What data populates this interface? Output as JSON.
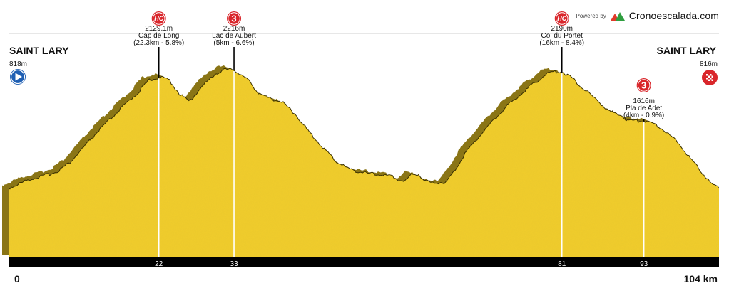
{
  "brand": {
    "powered_by": "Powered by",
    "name": "Cronoescalada.com",
    "logo_icon": "mountains-icon",
    "colors": [
      "#e03a2a",
      "#2f9e3f"
    ]
  },
  "start": {
    "name": "SAINT LARY",
    "altitude": "818m",
    "icon": "play-icon"
  },
  "finish": {
    "name": "SAINT LARY",
    "altitude": "816m",
    "icon": "checkered-flag-icon"
  },
  "colors": {
    "profile": "#f2cd2a",
    "shadow": "#8a7516",
    "baseline": "#000000",
    "badge": "#d9262b"
  },
  "chart_data": {
    "type": "area",
    "title": "",
    "xlabel": "",
    "ylabel": "",
    "xlim": [
      0,
      104
    ],
    "x_unit": "km",
    "x_ticks": [
      {
        "km": 0,
        "label": "0",
        "edge": true
      },
      {
        "km": 22,
        "label": "22"
      },
      {
        "km": 33,
        "label": "33"
      },
      {
        "km": 81,
        "label": "81"
      },
      {
        "km": 93,
        "label": "93"
      },
      {
        "km": 104,
        "label": "104 km",
        "edge": true
      }
    ],
    "profile": [
      [
        0,
        818
      ],
      [
        1,
        850
      ],
      [
        3,
        920
      ],
      [
        5,
        960
      ],
      [
        7,
        1010
      ],
      [
        9,
        1120
      ],
      [
        11,
        1300
      ],
      [
        13,
        1480
      ],
      [
        15,
        1640
      ],
      [
        17,
        1800
      ],
      [
        19,
        1950
      ],
      [
        20.5,
        2090
      ],
      [
        22,
        2129
      ],
      [
        23.5,
        2100
      ],
      [
        25,
        1930
      ],
      [
        26.5,
        1840
      ],
      [
        28,
        1990
      ],
      [
        30,
        2150
      ],
      [
        31.5,
        2216
      ],
      [
        33,
        2216
      ],
      [
        35,
        2100
      ],
      [
        36.5,
        1950
      ],
      [
        38,
        1880
      ],
      [
        40,
        1840
      ],
      [
        42,
        1690
      ],
      [
        44,
        1480
      ],
      [
        46,
        1300
      ],
      [
        48,
        1130
      ],
      [
        50,
        1040
      ],
      [
        52,
        1000
      ],
      [
        54,
        980
      ],
      [
        56,
        960
      ],
      [
        57,
        920
      ],
      [
        58,
        900
      ],
      [
        59,
        980
      ],
      [
        60,
        980
      ],
      [
        61,
        905
      ],
      [
        62,
        880
      ],
      [
        64,
        890
      ],
      [
        65,
        990
      ],
      [
        67,
        1250
      ],
      [
        69,
        1440
      ],
      [
        71,
        1620
      ],
      [
        73,
        1790
      ],
      [
        75,
        1930
      ],
      [
        77,
        2060
      ],
      [
        78.5,
        2150
      ],
      [
        79.5,
        2190
      ],
      [
        81,
        2190
      ],
      [
        82.5,
        2120
      ],
      [
        84,
        2000
      ],
      [
        86,
        1870
      ],
      [
        87,
        1790
      ],
      [
        88,
        1720
      ],
      [
        89.5,
        1690
      ],
      [
        90.5,
        1620
      ],
      [
        91.5,
        1610
      ],
      [
        93,
        1616
      ],
      [
        94.5,
        1580
      ],
      [
        96,
        1500
      ],
      [
        98,
        1360
      ],
      [
        100,
        1150
      ],
      [
        102,
        960
      ],
      [
        103,
        860
      ],
      [
        104,
        816
      ]
    ],
    "climbs": [
      {
        "km": 22,
        "category": "HC",
        "altitude": "2129.1m",
        "name": "Cap de Long",
        "details": "(22.3km - 5.8%)"
      },
      {
        "km": 33,
        "category": "3",
        "altitude": "2216m",
        "name": "Lac de Aubert",
        "details": "(5km - 6.6%)"
      },
      {
        "km": 81,
        "category": "HC",
        "altitude": "2190m",
        "name": "Col du Portet",
        "details": "(16km - 8.4%)"
      },
      {
        "km": 93,
        "category": "3",
        "altitude": "1616m",
        "name": "Pla de Adet",
        "details": "(4km - 0.9%)"
      }
    ]
  }
}
